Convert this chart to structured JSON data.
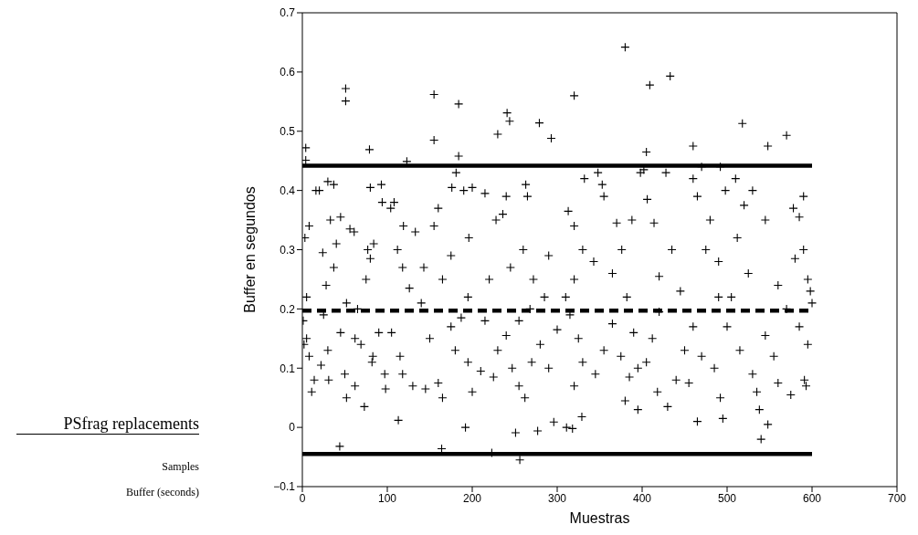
{
  "chart_data": {
    "type": "scatter",
    "xlabel": "Muestras",
    "ylabel": "Buffer en segundos",
    "xlim": [
      0,
      700
    ],
    "xticks": [
      0,
      100,
      200,
      300,
      400,
      500,
      600,
      700
    ],
    "ylim": [
      -0.1,
      0.7
    ],
    "yticks": [
      -0.1,
      0,
      0.1,
      0.2,
      0.3,
      0.4,
      0.5,
      0.6,
      0.7
    ],
    "grid": false,
    "legend": false,
    "annotations": [
      "PSfrag replacements",
      "Samples",
      "Buffer (seconds)"
    ],
    "series": [
      {
        "color": "#000000",
        "marker": "cross",
        "x": [
          4,
          4,
          51,
          51,
          79,
          123,
          155,
          155,
          184,
          184,
          230,
          241,
          244,
          279,
          293,
          320,
          380,
          409,
          405,
          433,
          460,
          518,
          548,
          570,
          44,
          113,
          164,
          223,
          256,
          192,
          251,
          277,
          296,
          311,
          318,
          329,
          540,
          548,
          395,
          465,
          3,
          8,
          5,
          1,
          2,
          5,
          8,
          11,
          14,
          16,
          20,
          30,
          37,
          24,
          33,
          40,
          37,
          28,
          25,
          22,
          31,
          30,
          50,
          52,
          45,
          45,
          56,
          61,
          77,
          80,
          84,
          80,
          93,
          94,
          104,
          52,
          65,
          75,
          62,
          83,
          69,
          62,
          73,
          97,
          82,
          90,
          98,
          108,
          119,
          133,
          112,
          143,
          126,
          118,
          140,
          105,
          115,
          130,
          145,
          160,
          165,
          118,
          150,
          175,
          180,
          195,
          200,
          210,
          165,
          175,
          160,
          176,
          181,
          190,
          196,
          195,
          187,
          155,
          200,
          215,
          228,
          236,
          240,
          263,
          265,
          260,
          245,
          220,
          215,
          240,
          230,
          225,
          247,
          255,
          270,
          280,
          290,
          300,
          285,
          290,
          272,
          268,
          262,
          255,
          313,
          320,
          330,
          332,
          348,
          353,
          355,
          370,
          388,
          398,
          343,
          320,
          310,
          315,
          325,
          330,
          320,
          345,
          355,
          365,
          375,
          385,
          380,
          395,
          390,
          365,
          376,
          382,
          402,
          406,
          414,
          428,
          435,
          420,
          445,
          420,
          412,
          405,
          418,
          430,
          440,
          450,
          460,
          465,
          470,
          480,
          475,
          490,
          460,
          470,
          455,
          485,
          492,
          492,
          498,
          495,
          490,
          510,
          520,
          530,
          545,
          512,
          525,
          505,
          500,
          515,
          530,
          535,
          538,
          545,
          555,
          560,
          575,
          578,
          585,
          580,
          590,
          595,
          598,
          600,
          585,
          595,
          591,
          593,
          590,
          560,
          570
        ],
        "values": [
          0.472,
          0.451,
          0.572,
          0.551,
          0.469,
          0.449,
          0.562,
          0.485,
          0.546,
          0.458,
          0.495,
          0.531,
          0.517,
          0.514,
          0.488,
          0.56,
          0.642,
          0.578,
          0.465,
          0.593,
          0.475,
          0.513,
          0.475,
          0.493,
          -0.032,
          0.012,
          -0.036,
          -0.043,
          -0.055,
          0,
          -0.009,
          -0.006,
          0.009,
          0,
          -0.002,
          0.018,
          -0.02,
          0.005,
          0.03,
          0.01,
          0.32,
          0.34,
          0.22,
          0.18,
          0.14,
          0.15,
          0.12,
          0.06,
          0.08,
          0.4,
          0.4,
          0.415,
          0.41,
          0.295,
          0.35,
          0.31,
          0.27,
          0.24,
          0.19,
          0.105,
          0.08,
          0.13,
          0.09,
          0.05,
          0.16,
          0.355,
          0.335,
          0.33,
          0.3,
          0.285,
          0.31,
          0.405,
          0.41,
          0.38,
          0.37,
          0.21,
          0.2,
          0.25,
          0.15,
          0.12,
          0.14,
          0.07,
          0.035,
          0.09,
          0.11,
          0.16,
          0.065,
          0.38,
          0.34,
          0.33,
          0.3,
          0.27,
          0.235,
          0.27,
          0.21,
          0.16,
          0.12,
          0.07,
          0.065,
          0.075,
          0.05,
          0.09,
          0.15,
          0.17,
          0.13,
          0.11,
          0.06,
          0.095,
          0.25,
          0.29,
          0.37,
          0.405,
          0.43,
          0.4,
          0.32,
          0.22,
          0.185,
          0.34,
          0.405,
          0.395,
          0.35,
          0.36,
          0.39,
          0.41,
          0.39,
          0.3,
          0.27,
          0.25,
          0.18,
          0.155,
          0.13,
          0.085,
          0.1,
          0.07,
          0.11,
          0.14,
          0.1,
          0.165,
          0.22,
          0.29,
          0.25,
          0.2,
          0.05,
          0.18,
          0.365,
          0.34,
          0.3,
          0.42,
          0.43,
          0.41,
          0.39,
          0.345,
          0.35,
          0.43,
          0.28,
          0.25,
          0.22,
          0.19,
          0.15,
          0.11,
          0.07,
          0.09,
          0.13,
          0.175,
          0.12,
          0.085,
          0.045,
          0.1,
          0.16,
          0.26,
          0.3,
          0.22,
          0.435,
          0.385,
          0.345,
          0.43,
          0.3,
          0.255,
          0.23,
          0.195,
          0.15,
          0.11,
          0.06,
          0.035,
          0.08,
          0.13,
          0.42,
          0.39,
          0.44,
          0.35,
          0.3,
          0.28,
          0.17,
          0.12,
          0.075,
          0.1,
          0.05,
          0.44,
          0.4,
          0.015,
          0.22,
          0.42,
          0.375,
          0.4,
          0.35,
          0.32,
          0.26,
          0.22,
          0.17,
          0.13,
          0.09,
          0.06,
          0.03,
          0.155,
          0.12,
          0.075,
          0.055,
          0.37,
          0.355,
          0.285,
          0.3,
          0.25,
          0.23,
          0.21,
          0.17,
          0.14,
          0.08,
          0.07,
          0.39,
          0.24,
          0.2
        ]
      },
      {
        "type": "line",
        "color": "#000000",
        "line_style": "solid",
        "marker": "none",
        "x": [
          0,
          600
        ],
        "values": [
          0.442,
          0.442
        ]
      },
      {
        "type": "line",
        "color": "#000000",
        "line_style": "dashed",
        "marker": "none",
        "x": [
          0,
          600
        ],
        "values": [
          0.197,
          0.197
        ]
      },
      {
        "type": "line",
        "color": "#000000",
        "line_style": "solid",
        "marker": "none",
        "x": [
          0,
          600
        ],
        "values": [
          -0.045,
          -0.045
        ]
      }
    ]
  }
}
